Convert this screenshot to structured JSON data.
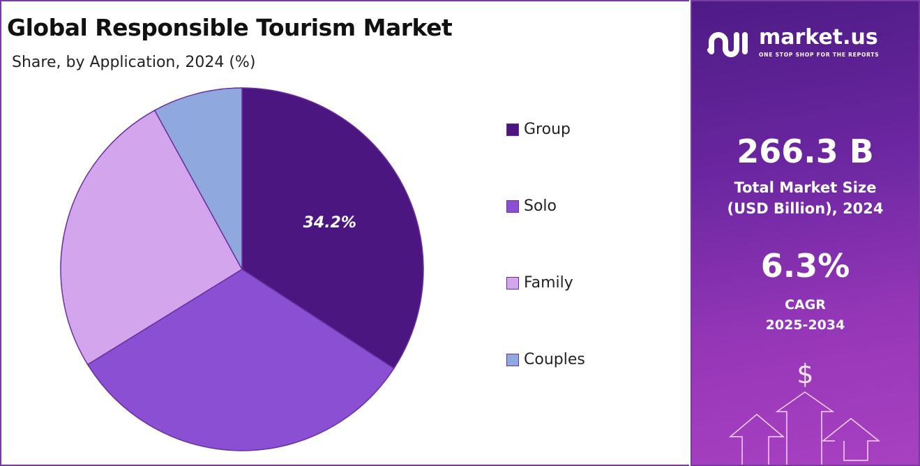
{
  "chart_data": {
    "type": "pie",
    "title": "Global Responsible Tourism Market",
    "subtitle": "Share, by Application, 2024 (%)",
    "categories": [
      "Group",
      "Solo",
      "Family",
      "Couples"
    ],
    "values": [
      34.2,
      32.0,
      25.8,
      8.0
    ],
    "colors": [
      "#4b1680",
      "#8a4fd3",
      "#d3a5ec",
      "#8fa9de"
    ],
    "data_labels": [
      "34.2%",
      "",
      "",
      ""
    ],
    "legend_position": "right",
    "start_angle": "top, clockwise"
  },
  "panel": {
    "brand": "market.us",
    "tagline": "ONE STOP SHOP FOR THE REPORTS",
    "market_size": "266.3 B",
    "market_size_label_1": "Total Market Size",
    "market_size_label_2": "(USD Billion), 2024",
    "cagr": "6.3%",
    "cagr_label": "CAGR",
    "cagr_period": "2025-2034",
    "dollar": "$"
  }
}
